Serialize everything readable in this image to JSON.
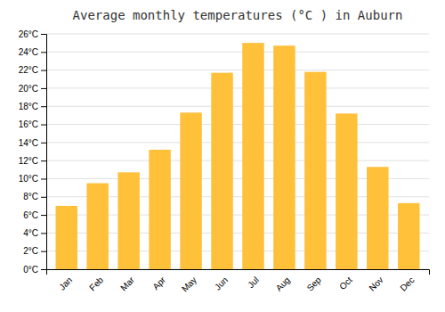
{
  "chart_data": {
    "type": "bar",
    "title": "Average monthly temperatures (°C ) in Auburn",
    "categories": [
      "Jan",
      "Feb",
      "Mar",
      "Apr",
      "May",
      "Jun",
      "Jul",
      "Aug",
      "Sep",
      "Oct",
      "Nov",
      "Dec"
    ],
    "values": [
      7.0,
      9.5,
      10.7,
      13.2,
      17.3,
      21.7,
      25.0,
      24.7,
      21.8,
      17.2,
      11.3,
      7.3
    ],
    "color": "#FFC03A",
    "ylim": [
      0,
      26
    ],
    "yticks": [
      {
        "value": 0,
        "label": "0°C"
      },
      {
        "value": 2,
        "label": "2°C"
      },
      {
        "value": 4,
        "label": "4°C"
      },
      {
        "value": 6,
        "label": "6°C"
      },
      {
        "value": 8,
        "label": "8°C"
      },
      {
        "value": 10,
        "label": "10°C"
      },
      {
        "value": 12,
        "label": "12°C"
      },
      {
        "value": 14,
        "label": "14°C"
      },
      {
        "value": 16,
        "label": "16°C"
      },
      {
        "value": 18,
        "label": "18°C"
      },
      {
        "value": 20,
        "label": "20°C"
      },
      {
        "value": 22,
        "label": "22°C"
      },
      {
        "value": 24,
        "label": "24°C"
      },
      {
        "value": 26,
        "label": "26°C"
      }
    ],
    "grid": true
  }
}
